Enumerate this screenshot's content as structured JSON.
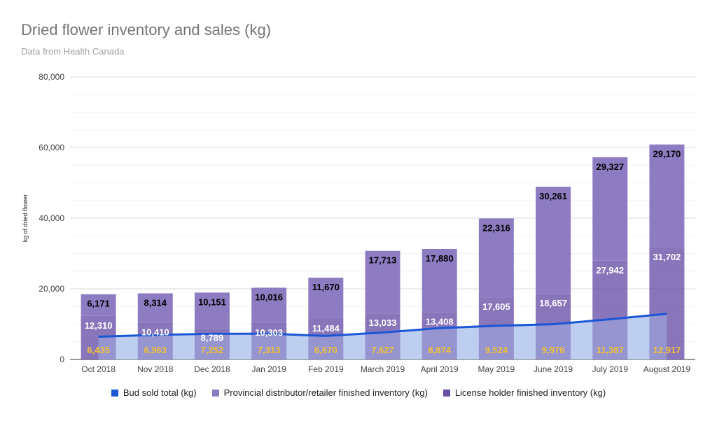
{
  "chart_data": {
    "type": "bar",
    "title": "Dried flower inventory and sales (kg)",
    "subtitle": "Data from Health Canada",
    "ylabel": "kg of dried flower",
    "ylim": [
      0,
      80000
    ],
    "yticks": [
      0,
      20000,
      40000,
      60000,
      80000
    ],
    "ytick_labels": [
      "0",
      "20,000",
      "40,000",
      "60,000",
      "80,000"
    ],
    "grid": true,
    "legend_position": "bottom",
    "categories": [
      "Oct 2018",
      "Nov 2018",
      "Dec 2018",
      "Jan 2019",
      "Feb 2019",
      "March 2019",
      "April 2019",
      "May 2019",
      "June 2019",
      "July 2019",
      "August 2019"
    ],
    "series": [
      {
        "name": "Bud sold total (kg)",
        "kind": "line-area",
        "color": "#1a56d6",
        "fill": "#b7caf0",
        "values": [
          6435,
          6963,
          7252,
          7313,
          6670,
          7627,
          8874,
          9524,
          9976,
          11387,
          12917
        ],
        "labels": [
          "6,435",
          "6,963",
          "7,252",
          "7,313",
          "6,670",
          "7,627",
          "8,874",
          "9,524",
          "9,976",
          "11,387",
          "12,917"
        ]
      },
      {
        "name": "Provincial distributor/retailer finished inventory (kg)",
        "kind": "stacked-bar-top",
        "color": "#8e7cc3",
        "values": [
          6171,
          8314,
          10151,
          10016,
          11670,
          17713,
          17880,
          22316,
          30261,
          29327,
          29170
        ],
        "labels": [
          "6,171",
          "8,314",
          "10,151",
          "10,016",
          "11,670",
          "17,713",
          "17,880",
          "22,316",
          "30,261",
          "29,327",
          "29,170"
        ]
      },
      {
        "name": "License holder finished inventory (kg)",
        "kind": "stacked-bar-bottom",
        "color": "#674ea7",
        "values": [
          12310,
          10410,
          8789,
          10303,
          11484,
          13033,
          13408,
          17605,
          18657,
          27942,
          31702
        ],
        "labels": [
          "12,310",
          "10,410",
          "8,789",
          "10,303",
          "11,484",
          "13,033",
          "13,408",
          "17,605",
          "18,657",
          "27,942",
          "31,702"
        ]
      }
    ],
    "colors": {
      "sold_label": "#f1c232",
      "top_label": "#000000",
      "bottom_label": "#ffffff"
    }
  }
}
